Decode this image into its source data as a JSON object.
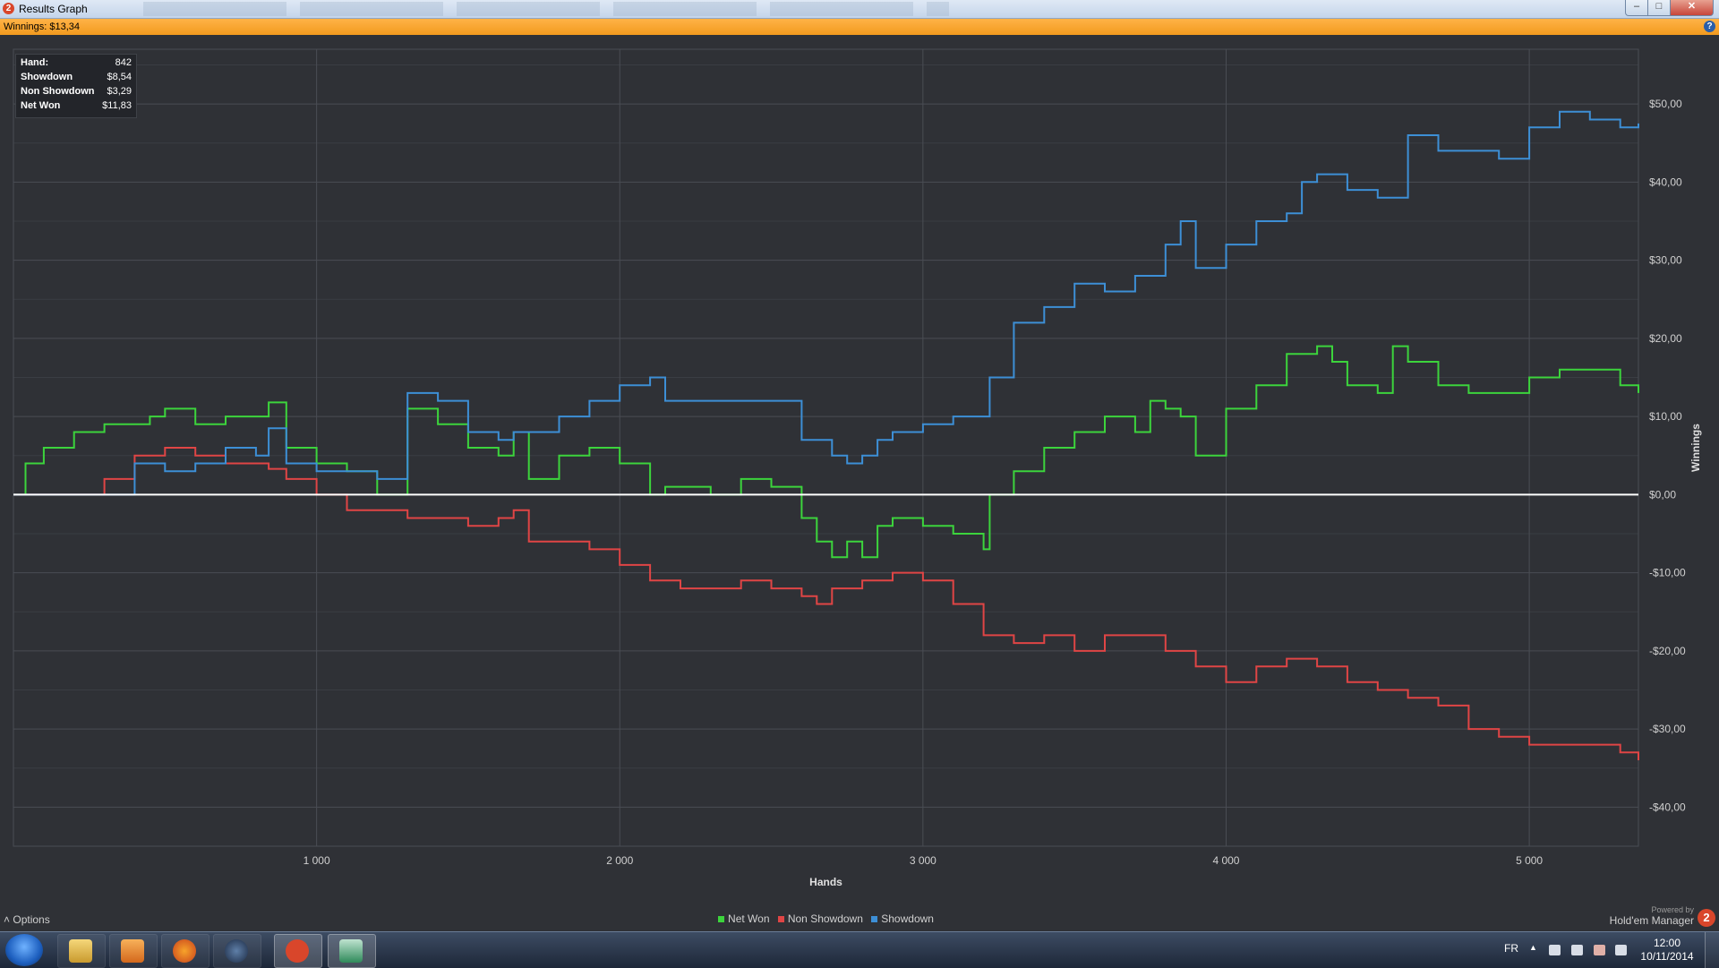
{
  "window": {
    "title": "Results Graph",
    "icon_label": "2"
  },
  "winnings_bar": {
    "text": "Winnings: $13,34"
  },
  "tooltip": {
    "rows": [
      {
        "key": "Hand:",
        "value": "842"
      },
      {
        "key": "Showdown",
        "value": "$8,54"
      },
      {
        "key": "Non Showdown",
        "value": "$3,29"
      },
      {
        "key": "Net Won",
        "value": "$11,83"
      }
    ]
  },
  "chart_data": {
    "type": "line",
    "xlabel": "Hands",
    "ylabel": "Winnings",
    "xlim": [
      0,
      5360
    ],
    "ylim": [
      -45,
      57
    ],
    "x_ticks": [
      1000,
      2000,
      3000,
      4000,
      5000
    ],
    "x_tick_labels": [
      "1 000",
      "2 000",
      "3 000",
      "4 000",
      "5 000"
    ],
    "y_ticks": [
      50,
      40,
      30,
      20,
      10,
      0,
      -10,
      -20,
      -30,
      -40
    ],
    "y_tick_labels": [
      "$50,00",
      "$40,00",
      "$30,00",
      "$20,00",
      "$10,00",
      "$0,00",
      "-$10,00",
      "-$20,00",
      "-$30,00",
      "-$40,00"
    ],
    "legend_position": "bottom-center",
    "grid": true,
    "series": [
      {
        "name": "Net Won",
        "color": "#3cd43c",
        "x": [
          0,
          40,
          100,
          200,
          300,
          350,
          450,
          500,
          600,
          700,
          842,
          900,
          1000,
          1100,
          1200,
          1300,
          1400,
          1500,
          1600,
          1650,
          1700,
          1800,
          1900,
          2000,
          2100,
          2150,
          2200,
          2300,
          2400,
          2500,
          2600,
          2650,
          2700,
          2750,
          2800,
          2850,
          2900,
          3000,
          3100,
          3200,
          3220,
          3300,
          3400,
          3500,
          3600,
          3700,
          3750,
          3800,
          3850,
          3900,
          4000,
          4100,
          4200,
          4300,
          4350,
          4400,
          4500,
          4550,
          4600,
          4700,
          4800,
          4900,
          5000,
          5100,
          5200,
          5300,
          5360
        ],
        "y": [
          0,
          4,
          6,
          8,
          9,
          9,
          10,
          11,
          9,
          10,
          11.8,
          6,
          4,
          3,
          0,
          11,
          9,
          6,
          5,
          8,
          2,
          5,
          6,
          4,
          0,
          1,
          1,
          0,
          2,
          1,
          -3,
          -6,
          -8,
          -6,
          -8,
          -4,
          -3,
          -4,
          -5,
          -7,
          0,
          3,
          6,
          8,
          10,
          8,
          12,
          11,
          10,
          5,
          11,
          14,
          18,
          19,
          17,
          14,
          13,
          19,
          17,
          14,
          13,
          13,
          15,
          16,
          16,
          14,
          13
        ]
      },
      {
        "name": "Non Showdown",
        "color": "#e04545",
        "x": [
          0,
          100,
          200,
          300,
          400,
          500,
          600,
          700,
          842,
          900,
          1000,
          1100,
          1200,
          1300,
          1400,
          1500,
          1600,
          1650,
          1700,
          1800,
          1900,
          2000,
          2100,
          2200,
          2300,
          2400,
          2500,
          2600,
          2650,
          2700,
          2800,
          2900,
          3000,
          3100,
          3200,
          3300,
          3400,
          3500,
          3600,
          3700,
          3800,
          3900,
          4000,
          4100,
          4200,
          4300,
          4400,
          4500,
          4600,
          4700,
          4800,
          4900,
          5000,
          5100,
          5200,
          5300,
          5360
        ],
        "y": [
          0,
          0,
          0,
          2,
          5,
          6,
          5,
          4,
          3.3,
          2,
          0,
          -2,
          -2,
          -3,
          -3,
          -4,
          -3,
          -2,
          -6,
          -6,
          -7,
          -9,
          -11,
          -12,
          -12,
          -11,
          -12,
          -13,
          -14,
          -12,
          -11,
          -10,
          -11,
          -14,
          -18,
          -19,
          -18,
          -20,
          -18,
          -18,
          -20,
          -22,
          -24,
          -22,
          -21,
          -22,
          -24,
          -25,
          -26,
          -27,
          -30,
          -31,
          -32,
          -32,
          -32,
          -33,
          -34
        ]
      },
      {
        "name": "Showdown",
        "color": "#3d8fd6",
        "x": [
          0,
          100,
          200,
          300,
          400,
          500,
          600,
          700,
          800,
          842,
          900,
          1000,
          1100,
          1200,
          1300,
          1400,
          1500,
          1600,
          1650,
          1800,
          1900,
          2000,
          2100,
          2150,
          2200,
          2300,
          2400,
          2500,
          2600,
          2700,
          2750,
          2800,
          2850,
          2900,
          3000,
          3100,
          3200,
          3220,
          3300,
          3400,
          3500,
          3600,
          3700,
          3800,
          3850,
          3900,
          4000,
          4100,
          4200,
          4250,
          4300,
          4400,
          4500,
          4600,
          4700,
          4800,
          4900,
          5000,
          5100,
          5200,
          5300,
          5360
        ],
        "y": [
          0,
          0,
          0,
          0,
          4,
          3,
          4,
          6,
          5,
          8.5,
          4,
          3,
          3,
          2,
          13,
          12,
          8,
          7,
          8,
          10,
          12,
          14,
          15,
          12,
          12,
          12,
          12,
          12,
          7,
          5,
          4,
          5,
          7,
          8,
          9,
          10,
          10,
          15,
          22,
          24,
          27,
          26,
          28,
          32,
          35,
          29,
          32,
          35,
          36,
          40,
          41,
          39,
          38,
          46,
          44,
          44,
          43,
          47,
          49,
          48,
          47,
          47.5
        ]
      }
    ]
  },
  "bottom": {
    "options_label": "Options",
    "powered_by": "Powered by",
    "brand": "Hold'em Manager",
    "brand_logo": "2"
  },
  "taskbar": {
    "lang": "FR",
    "time": "12:00",
    "date": "10/11/2014"
  }
}
